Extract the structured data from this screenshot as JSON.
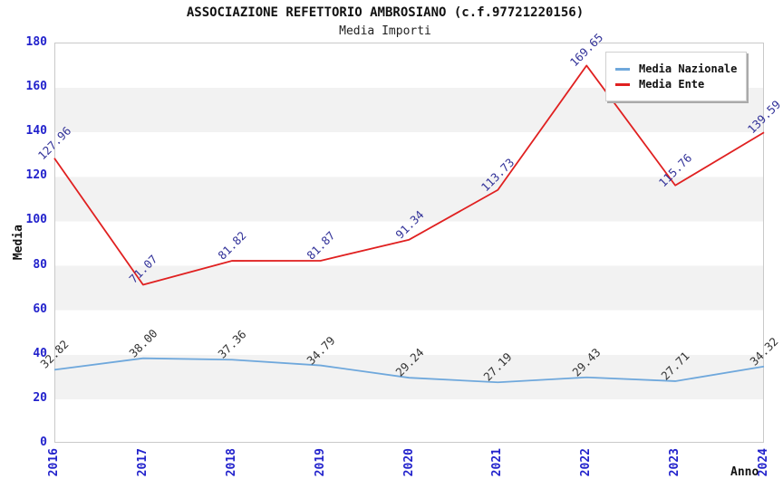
{
  "title": "ASSOCIAZIONE REFETTORIO AMBROSIANO (c.f.97721220156)",
  "subtitle": "Media Importi",
  "chart_data": {
    "type": "line",
    "title": "ASSOCIAZIONE REFETTORIO AMBROSIANO (c.f.97721220156)",
    "subtitle": "Media Importi",
    "xlabel": "Anno",
    "ylabel": "Media",
    "ylim": [
      0,
      180
    ],
    "ytick_step": 20,
    "grid": "horizontal-bands",
    "legend_position": "top-right",
    "categories": [
      "2016",
      "2017",
      "2018",
      "2019",
      "2020",
      "2021",
      "2022",
      "2023",
      "2024"
    ],
    "series": [
      {
        "name": "Media Nazionale",
        "color": "#6fa8dc",
        "label_color": "#333333",
        "values": [
          32.82,
          38.0,
          37.36,
          34.79,
          29.24,
          27.19,
          29.43,
          27.71,
          34.32
        ]
      },
      {
        "name": "Media Ente",
        "color": "#e02020",
        "label_color": "#333399",
        "values": [
          127.96,
          71.07,
          81.82,
          81.87,
          91.34,
          113.73,
          169.65,
          115.76,
          139.59
        ]
      }
    ]
  },
  "colors": {
    "axis_tick": "#2222cc",
    "band": "#f2f2f2",
    "plot_border": "#c9c9c9",
    "legend_shadow": "#aaaaaa"
  }
}
